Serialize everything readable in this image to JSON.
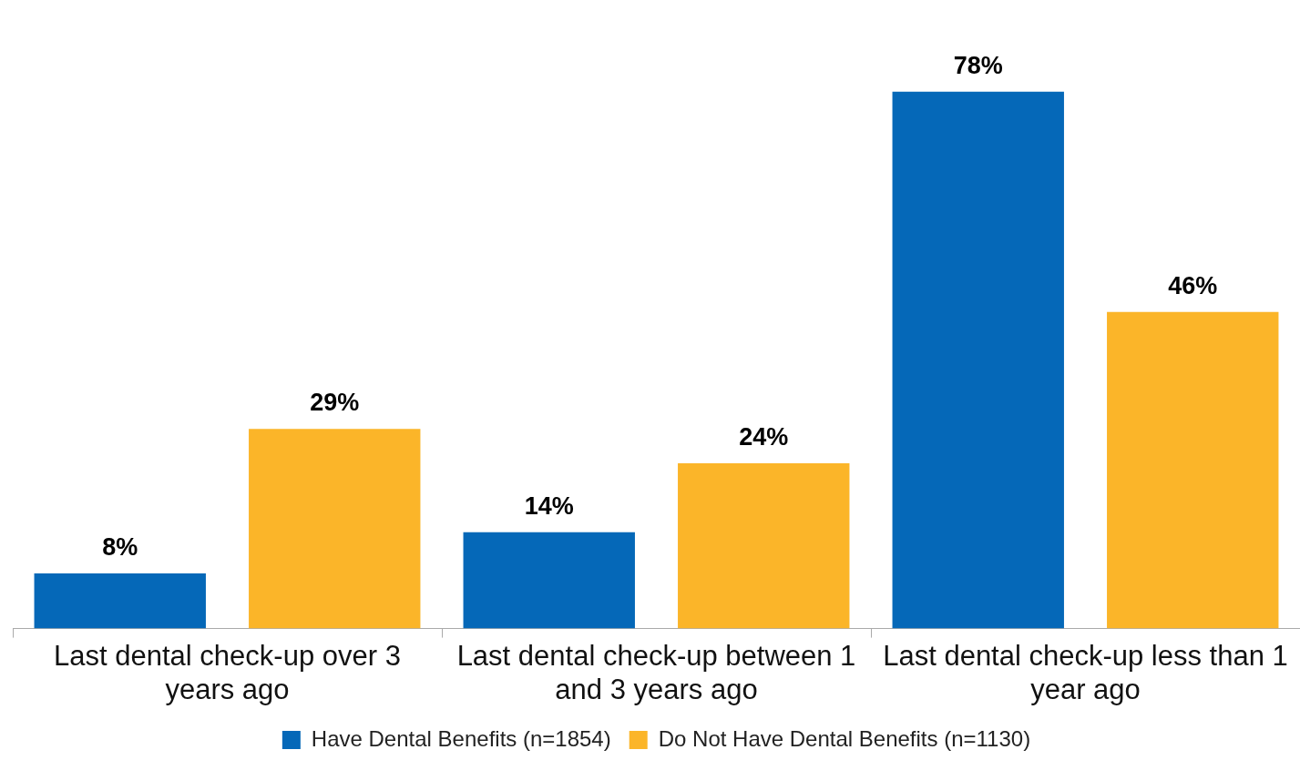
{
  "chart_data": {
    "type": "bar",
    "categories": [
      "Last dental check-up over 3 years ago",
      "Last dental check-up between 1 and 3 years ago",
      "Last dental check-up less than 1 year ago"
    ],
    "series": [
      {
        "name": "Have Dental Benefits (n=1854)",
        "color": "#0568b8",
        "values": [
          8,
          14,
          78
        ],
        "value_labels": [
          "8%",
          "14%",
          "78%"
        ]
      },
      {
        "name": "Do Not Have Dental Benefits (n=1130)",
        "color": "#fbb529",
        "values": [
          29,
          24,
          46
        ],
        "value_labels": [
          "29%",
          "24%",
          "46%"
        ]
      }
    ],
    "grid": false,
    "legend": "bottom"
  }
}
